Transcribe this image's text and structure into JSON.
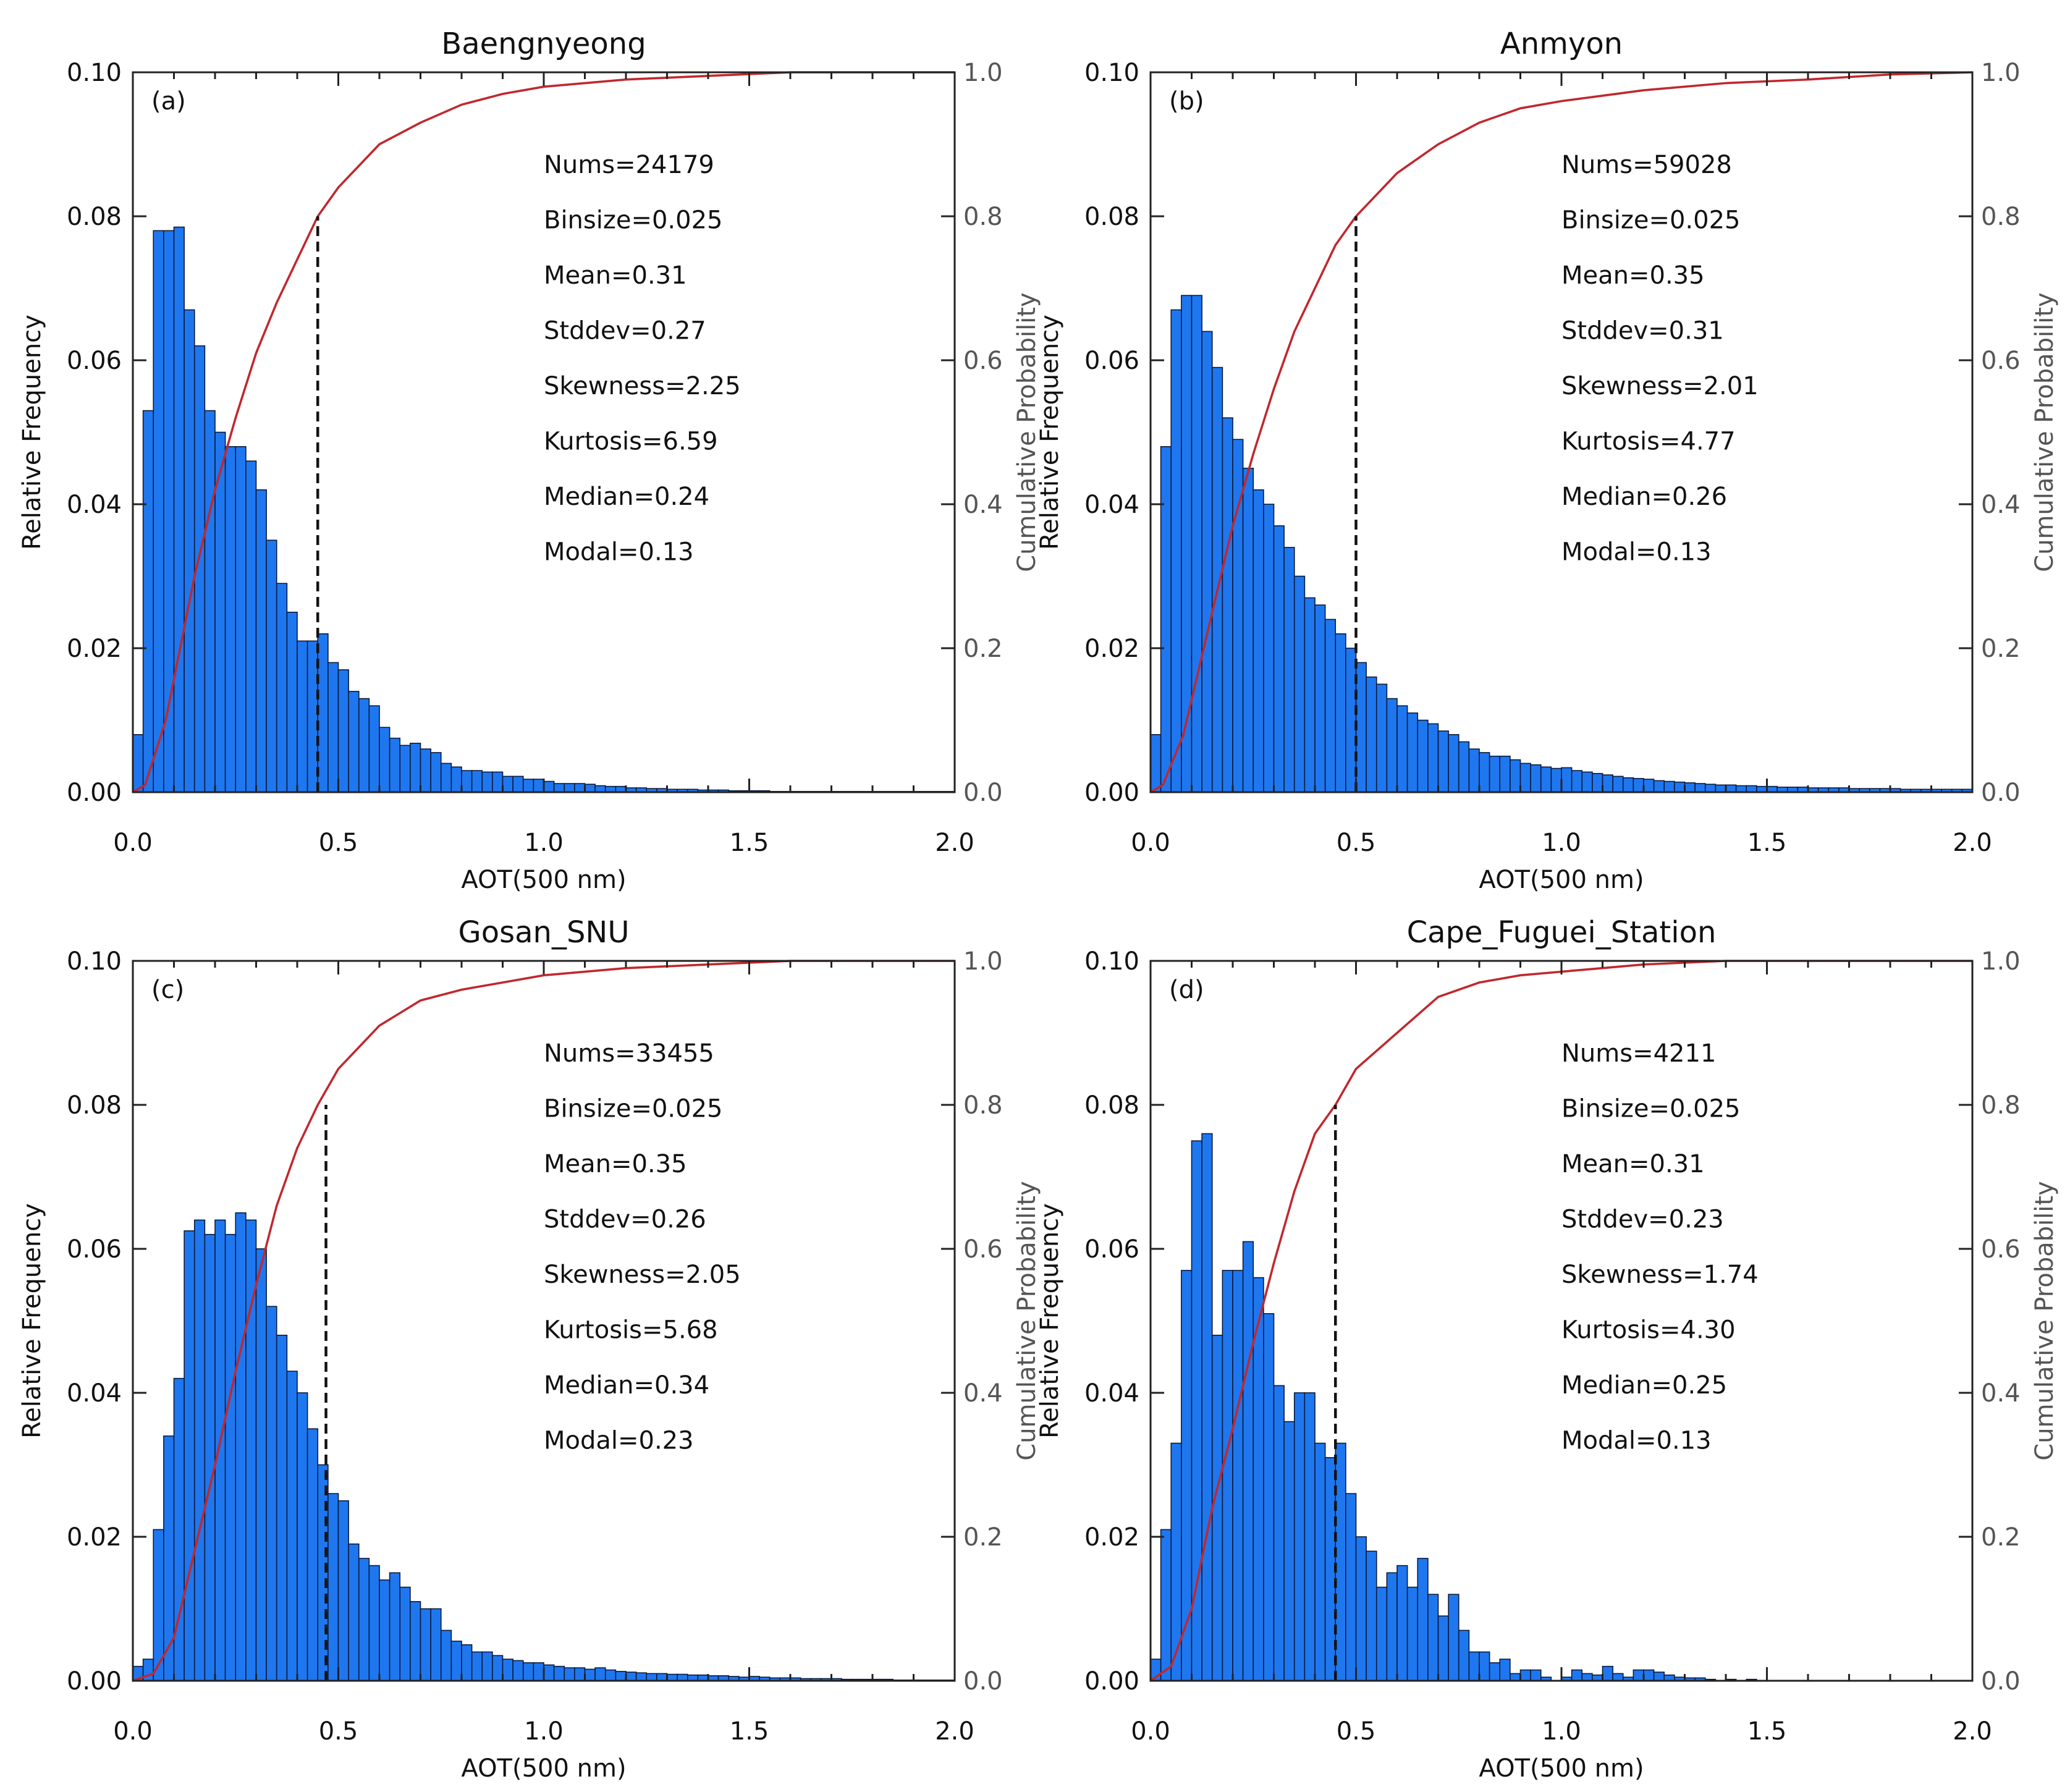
{
  "chart_data": [
    {
      "type": "bar",
      "panel_label": "(a)",
      "title": "Baengnyeong",
      "xlabel": "AOT(500 nm)",
      "ylabel": "Relative Frequency",
      "y2label": "Cumulative Probability",
      "xlim": [
        0,
        2.0
      ],
      "ylim": [
        0,
        0.1
      ],
      "y2lim": [
        0,
        1.0
      ],
      "xticks": [
        "0.0",
        "0.5",
        "1.0",
        "1.5",
        "2.0"
      ],
      "yticks": [
        "0.00",
        "0.02",
        "0.04",
        "0.06",
        "0.08",
        "0.10"
      ],
      "y2ticks": [
        "0.0",
        "0.2",
        "0.4",
        "0.6",
        "0.8",
        "1.0"
      ],
      "bin_start": 0.0,
      "bin_width": 0.025,
      "values": [
        0.008,
        0.053,
        0.078,
        0.078,
        0.0785,
        0.067,
        0.062,
        0.053,
        0.05,
        0.048,
        0.048,
        0.046,
        0.042,
        0.035,
        0.029,
        0.025,
        0.021,
        0.021,
        0.022,
        0.018,
        0.017,
        0.014,
        0.013,
        0.012,
        0.009,
        0.0075,
        0.0065,
        0.0068,
        0.006,
        0.0055,
        0.004,
        0.0035,
        0.003,
        0.003,
        0.0028,
        0.0028,
        0.0022,
        0.0022,
        0.0018,
        0.0018,
        0.0015,
        0.0012,
        0.0012,
        0.0012,
        0.0011,
        0.0009,
        0.0008,
        0.0008,
        0.0006,
        0.0006,
        0.0005,
        0.0005,
        0.0004,
        0.0004,
        0.0004,
        0.0003,
        0.0003,
        0.0003,
        0.0002,
        0.0002,
        0.0002,
        0.0002,
        0.0001,
        0.0001,
        0.0001,
        0.0001,
        0.0001,
        0.0001,
        0.0001,
        0.0001,
        0.0001,
        0.0001,
        0.0001,
        0.0001,
        0.0001,
        0.0001,
        0.0001,
        0.0001,
        0.0001,
        0.0001
      ],
      "cdf": {
        "x": [
          0,
          0.03,
          0.08,
          0.15,
          0.2,
          0.25,
          0.3,
          0.35,
          0.4,
          0.45,
          0.5,
          0.6,
          0.7,
          0.8,
          0.9,
          1.0,
          1.2,
          1.4,
          1.6,
          1.8,
          2.0
        ],
        "y": [
          0,
          0.01,
          0.1,
          0.3,
          0.42,
          0.52,
          0.61,
          0.68,
          0.74,
          0.8,
          0.84,
          0.9,
          0.93,
          0.955,
          0.97,
          0.98,
          0.99,
          0.995,
          1.0,
          1.0,
          1.0
        ]
      },
      "median_marker_x": 0.45,
      "stats": [
        "Nums=24179",
        "Binsize=0.025",
        "Mean=0.31",
        "Stddev=0.27",
        "Skewness=2.25",
        "Kurtosis=6.59",
        "Median=0.24",
        "Modal=0.13"
      ]
    },
    {
      "type": "bar",
      "panel_label": "(b)",
      "title": "Anmyon",
      "xlabel": "AOT(500 nm)",
      "ylabel": "Relative Frequency",
      "y2label": "Cumulative Probability",
      "xlim": [
        0,
        2.0
      ],
      "ylim": [
        0,
        0.1
      ],
      "y2lim": [
        0,
        1.0
      ],
      "xticks": [
        "0.0",
        "0.5",
        "1.0",
        "1.5",
        "2.0"
      ],
      "yticks": [
        "0.00",
        "0.02",
        "0.04",
        "0.06",
        "0.08",
        "0.10"
      ],
      "y2ticks": [
        "0.0",
        "0.2",
        "0.4",
        "0.6",
        "0.8",
        "1.0"
      ],
      "bin_start": 0.0,
      "bin_width": 0.025,
      "values": [
        0.008,
        0.048,
        0.067,
        0.069,
        0.069,
        0.064,
        0.059,
        0.052,
        0.049,
        0.045,
        0.042,
        0.04,
        0.037,
        0.034,
        0.03,
        0.027,
        0.026,
        0.024,
        0.022,
        0.02,
        0.018,
        0.016,
        0.015,
        0.013,
        0.012,
        0.011,
        0.01,
        0.0095,
        0.0085,
        0.008,
        0.007,
        0.006,
        0.0055,
        0.005,
        0.005,
        0.0045,
        0.004,
        0.0038,
        0.0035,
        0.0033,
        0.0034,
        0.003,
        0.0028,
        0.0026,
        0.0024,
        0.0022,
        0.002,
        0.0019,
        0.0018,
        0.0016,
        0.0015,
        0.0014,
        0.0013,
        0.0012,
        0.0011,
        0.001,
        0.001,
        0.0009,
        0.0009,
        0.0008,
        0.0008,
        0.0007,
        0.0007,
        0.0007,
        0.0006,
        0.0006,
        0.0006,
        0.0006,
        0.0005,
        0.0005,
        0.0005,
        0.0005,
        0.0005,
        0.0004,
        0.0004,
        0.0004,
        0.0004,
        0.0004,
        0.0004,
        0.0004
      ],
      "cdf": {
        "x": [
          0,
          0.03,
          0.08,
          0.15,
          0.2,
          0.25,
          0.3,
          0.35,
          0.4,
          0.45,
          0.5,
          0.6,
          0.7,
          0.8,
          0.9,
          1.0,
          1.2,
          1.4,
          1.6,
          1.8,
          2.0
        ],
        "y": [
          0,
          0.01,
          0.08,
          0.25,
          0.37,
          0.47,
          0.56,
          0.64,
          0.7,
          0.76,
          0.8,
          0.86,
          0.9,
          0.93,
          0.95,
          0.96,
          0.975,
          0.985,
          0.99,
          0.997,
          1.0
        ]
      },
      "median_marker_x": 0.5,
      "stats": [
        "Nums=59028",
        "Binsize=0.025",
        "Mean=0.35",
        "Stddev=0.31",
        "Skewness=2.01",
        "Kurtosis=4.77",
        "Median=0.26",
        "Modal=0.13"
      ]
    },
    {
      "type": "bar",
      "panel_label": "(c)",
      "title": "Gosan_SNU",
      "xlabel": "AOT(500 nm)",
      "ylabel": "Relative Frequency",
      "y2label": "Cumulative Probability",
      "xlim": [
        0,
        2.0
      ],
      "ylim": [
        0,
        0.1
      ],
      "y2lim": [
        0,
        1.0
      ],
      "xticks": [
        "0.0",
        "0.5",
        "1.0",
        "1.5",
        "2.0"
      ],
      "yticks": [
        "0.00",
        "0.02",
        "0.04",
        "0.06",
        "0.08",
        "0.10"
      ],
      "y2ticks": [
        "0.0",
        "0.2",
        "0.4",
        "0.6",
        "0.8",
        "1.0"
      ],
      "bin_start": 0.0,
      "bin_width": 0.025,
      "values": [
        0.002,
        0.003,
        0.021,
        0.034,
        0.042,
        0.0625,
        0.064,
        0.062,
        0.064,
        0.062,
        0.065,
        0.064,
        0.06,
        0.052,
        0.048,
        0.043,
        0.04,
        0.035,
        0.03,
        0.026,
        0.025,
        0.019,
        0.017,
        0.016,
        0.014,
        0.015,
        0.013,
        0.011,
        0.01,
        0.01,
        0.007,
        0.0055,
        0.005,
        0.004,
        0.004,
        0.0035,
        0.003,
        0.0028,
        0.0025,
        0.0025,
        0.0022,
        0.002,
        0.0018,
        0.0018,
        0.0016,
        0.0018,
        0.0015,
        0.0013,
        0.0012,
        0.0011,
        0.001,
        0.001,
        0.0009,
        0.0009,
        0.0008,
        0.0008,
        0.0007,
        0.0007,
        0.0006,
        0.0005,
        0.0006,
        0.0005,
        0.0004,
        0.0004,
        0.0004,
        0.0003,
        0.0003,
        0.0003,
        0.0003,
        0.0002,
        0.0002,
        0.0002,
        0.0002,
        0.0002,
        0.0001,
        0.0001,
        0.0001,
        0.0001,
        0.0001,
        0.0001
      ],
      "cdf": {
        "x": [
          0,
          0.05,
          0.1,
          0.15,
          0.2,
          0.25,
          0.3,
          0.35,
          0.4,
          0.45,
          0.5,
          0.6,
          0.7,
          0.8,
          0.9,
          1.0,
          1.2,
          1.4,
          1.6,
          1.8,
          2.0
        ],
        "y": [
          0,
          0.01,
          0.06,
          0.18,
          0.3,
          0.43,
          0.55,
          0.66,
          0.74,
          0.8,
          0.85,
          0.91,
          0.945,
          0.96,
          0.97,
          0.98,
          0.99,
          0.995,
          1.0,
          1.0,
          1.0
        ]
      },
      "median_marker_x": 0.47,
      "stats": [
        "Nums=33455",
        "Binsize=0.025",
        "Mean=0.35",
        "Stddev=0.26",
        "Skewness=2.05",
        "Kurtosis=5.68",
        "Median=0.34",
        "Modal=0.23"
      ]
    },
    {
      "type": "bar",
      "panel_label": "(d)",
      "title": "Cape_Fuguei_Station",
      "xlabel": "AOT(500 nm)",
      "ylabel": "Relative Frequency",
      "y2label": "Cumulative Probability",
      "xlim": [
        0,
        2.0
      ],
      "ylim": [
        0,
        0.1
      ],
      "y2lim": [
        0,
        1.0
      ],
      "xticks": [
        "0.0",
        "0.5",
        "1.0",
        "1.5",
        "2.0"
      ],
      "yticks": [
        "0.00",
        "0.02",
        "0.04",
        "0.06",
        "0.08",
        "0.10"
      ],
      "y2ticks": [
        "0.0",
        "0.2",
        "0.4",
        "0.6",
        "0.8",
        "1.0"
      ],
      "bin_start": 0.0,
      "bin_width": 0.025,
      "values": [
        0.003,
        0.021,
        0.033,
        0.057,
        0.075,
        0.076,
        0.048,
        0.057,
        0.057,
        0.061,
        0.056,
        0.051,
        0.041,
        0.036,
        0.04,
        0.04,
        0.033,
        0.031,
        0.033,
        0.026,
        0.02,
        0.018,
        0.013,
        0.015,
        0.016,
        0.013,
        0.017,
        0.012,
        0.009,
        0.012,
        0.007,
        0.004,
        0.004,
        0.0025,
        0.003,
        0.001,
        0.0015,
        0.0015,
        0.0005,
        0.0,
        0.0005,
        0.0015,
        0.001,
        0.0008,
        0.002,
        0.001,
        0.0005,
        0.0015,
        0.0015,
        0.0012,
        0.0008,
        0.0005,
        0.0004,
        0.0004,
        0.0002,
        0.0,
        0.0002,
        0.0,
        0.0002,
        0.0,
        0.0,
        0.0,
        0.0,
        0.0,
        0.0,
        0.0,
        0.0,
        0.0,
        0.0,
        0.0,
        0.0,
        0.0,
        0.0,
        0.0,
        0.0,
        0.0,
        0.0,
        0.0,
        0.0,
        0.0
      ],
      "cdf": {
        "x": [
          0,
          0.05,
          0.1,
          0.15,
          0.2,
          0.25,
          0.3,
          0.35,
          0.4,
          0.45,
          0.5,
          0.6,
          0.7,
          0.8,
          0.9,
          1.0,
          1.1,
          1.2,
          1.4,
          1.6,
          2.0
        ],
        "y": [
          0,
          0.02,
          0.1,
          0.24,
          0.35,
          0.47,
          0.58,
          0.68,
          0.76,
          0.8,
          0.85,
          0.9,
          0.95,
          0.97,
          0.98,
          0.985,
          0.99,
          0.995,
          1.0,
          1.0,
          1.0
        ]
      },
      "median_marker_x": 0.45,
      "stats": [
        "Nums=4211",
        "Binsize=0.025",
        "Mean=0.31",
        "Stddev=0.23",
        "Skewness=1.74",
        "Kurtosis=4.30",
        "Median=0.25",
        "Modal=0.13"
      ]
    }
  ]
}
